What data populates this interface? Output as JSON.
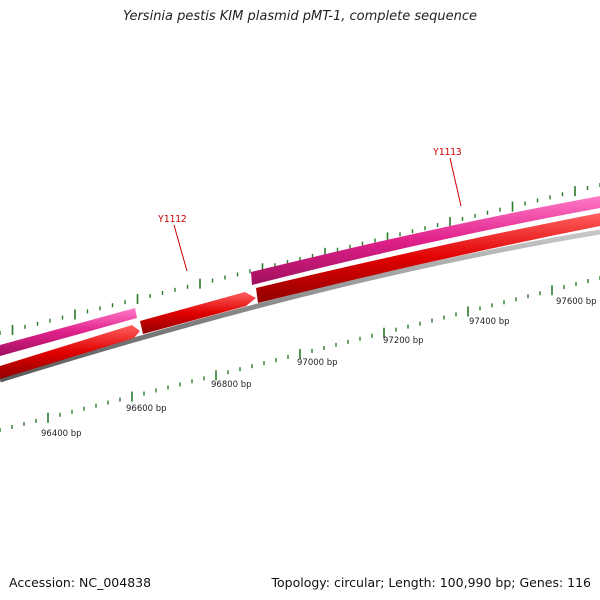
{
  "title": "Yersinia pestis KIM plasmid pMT-1, complete sequence",
  "accession": "Accession: NC_004838",
  "summary": "Topology: circular; Length: 100,990 bp; Genes: 116",
  "colors": {
    "background": "#ffffff",
    "backbone": "#8a8a8a",
    "tick": "#2a7a2a",
    "pink_gene": "#e0208a",
    "red_gene": "#e00000",
    "label_red": "#cc0000"
  },
  "gene_labels": [
    "Y1112",
    "Y1113"
  ],
  "scale_labels": [
    "96400 bp",
    "96600 bp",
    "96800 bp",
    "97000 bp",
    "97200 bp",
    "97400 bp",
    "97600 bp"
  ]
}
